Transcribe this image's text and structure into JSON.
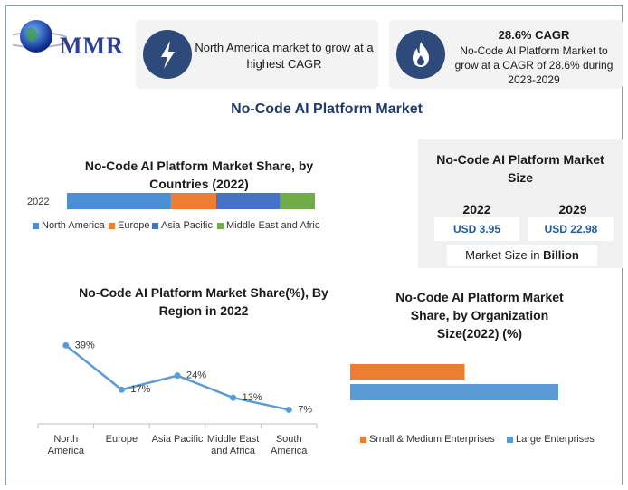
{
  "header": {
    "logo_text": "MMR",
    "card1_text": "North America market to grow at a highest CAGR",
    "card2_title": "28.6% CAGR",
    "card2_text": "No-Code AI Platform Market to grow at a CAGR of 28.6% during 2023-2029",
    "card1_icon": "lightning-bolt-icon",
    "card2_icon": "flame-icon"
  },
  "main_title": "No-Code AI Platform Market",
  "market_size": {
    "title": "No-Code AI Platform Market Size",
    "year1": "2022",
    "year2": "2029",
    "value1": "USD 3.95",
    "value2": "USD 22.98",
    "caption_prefix": "Market Size in ",
    "caption_bold": "Billion"
  },
  "colors": {
    "blue": "#4a8fd3",
    "orange": "#ed7d31",
    "dark_blue": "#4472c4",
    "green": "#70ad47",
    "navy": "#2e4a7a"
  },
  "chart_data": [
    {
      "type": "bar",
      "orientation": "horizontal-stacked",
      "title": "No-Code AI Platform Market Share, by Countries (2022)",
      "categories": [
        "2022"
      ],
      "series": [
        {
          "name": "North America",
          "values": [
            39
          ],
          "color": "#4a8fd3"
        },
        {
          "name": "Europe",
          "values": [
            17
          ],
          "color": "#ed7d31"
        },
        {
          "name": "Asia Pacific",
          "values": [
            24
          ],
          "color": "#4472c4"
        },
        {
          "name": "Middle East and Afric",
          "values": [
            13
          ],
          "color": "#70ad47"
        }
      ],
      "xlim": [
        0,
        93
      ],
      "legend": "bottom"
    },
    {
      "type": "line",
      "title": "No-Code AI Platform Market Share(%), By Region in 2022",
      "categories": [
        "North America",
        "Europe",
        "Asia Pacific",
        "Middle East and Africa",
        "South America"
      ],
      "values": [
        39,
        17,
        24,
        13,
        7
      ],
      "data_labels": [
        "39%",
        "17%",
        "24%",
        "13%",
        "7%"
      ],
      "ylim": [
        0,
        45
      ],
      "color": "#5b9bd5"
    },
    {
      "type": "bar",
      "orientation": "horizontal",
      "title": "No-Code AI Platform Market Share, by Organization Size(2022) (%)",
      "series": [
        {
          "name": "Small & Medium Enterprises",
          "values": [
            55
          ],
          "color": "#ed7d31"
        },
        {
          "name": "Large Enterprises",
          "values": [
            100
          ],
          "color": "#5b9bd5"
        }
      ],
      "xlim": [
        0,
        100
      ],
      "legend": "bottom"
    }
  ]
}
